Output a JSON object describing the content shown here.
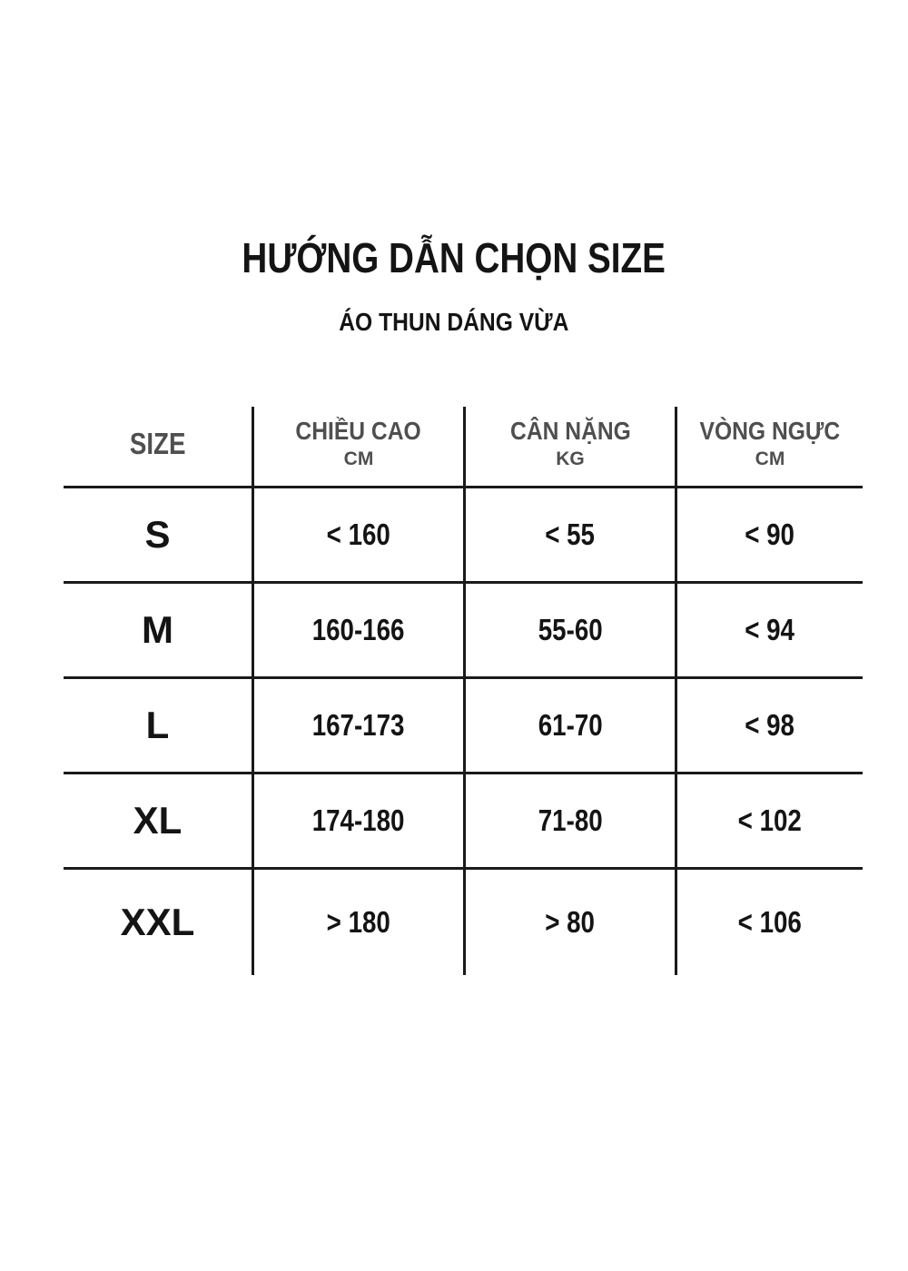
{
  "colors": {
    "bg": "#ffffff",
    "text_black": "#141414",
    "header_gray": "#4f4f4f",
    "line": "#1a1a1a"
  },
  "chart_data": {
    "type": "table",
    "title": "HƯỚNG DẪN CHỌN SIZE",
    "subtitle": "ÁO THUN DÁNG VỪA",
    "columns": [
      {
        "label": "SIZE",
        "unit": ""
      },
      {
        "label": "CHIỀU CAO",
        "unit": "CM"
      },
      {
        "label": "CÂN NẶNG",
        "unit": "KG"
      },
      {
        "label": "VÒNG NGỰC",
        "unit": "CM"
      }
    ],
    "rows": [
      {
        "size": "S",
        "height_cm": "< 160",
        "weight_kg": "< 55",
        "chest_cm": "< 90"
      },
      {
        "size": "M",
        "height_cm": "160-166",
        "weight_kg": "55-60",
        "chest_cm": "< 94"
      },
      {
        "size": "L",
        "height_cm": "167-173",
        "weight_kg": "61-70",
        "chest_cm": "< 98"
      },
      {
        "size": "XL",
        "height_cm": "174-180",
        "weight_kg": "71-80",
        "chest_cm": "< 102"
      },
      {
        "size": "XXL",
        "height_cm": "> 180",
        "weight_kg": "> 80",
        "chest_cm": "< 106"
      }
    ]
  }
}
